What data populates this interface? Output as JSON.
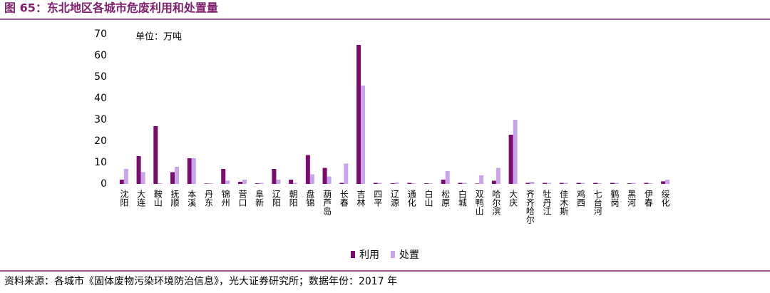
{
  "header": {
    "title": "图 65：东北地区各城市危废利用和处置量"
  },
  "chart_data": {
    "type": "bar",
    "annotation": "单位：万吨",
    "categories": [
      "沈阳",
      "大连",
      "鞍山",
      "抚顺",
      "本溪",
      "丹东",
      "锦州",
      "营口",
      "阜新",
      "辽阳",
      "朝阳",
      "盘锦",
      "葫芦岛",
      "长春",
      "吉林",
      "四平",
      "辽源",
      "通化",
      "白山",
      "松原",
      "白城",
      "双鸭山",
      "哈尔滨",
      "大庆",
      "齐齐哈尔",
      "牡丹江",
      "佳木斯",
      "鸡西",
      "七台河",
      "鹤岗",
      "黑河",
      "伊春",
      "绥化"
    ],
    "series": [
      {
        "name": "利用",
        "color": "#7b0c6e",
        "values": [
          2,
          13,
          27,
          5.5,
          12,
          0.2,
          7,
          1,
          0.3,
          7,
          2,
          13.5,
          7.5,
          0.5,
          65,
          0.5,
          0.3,
          0.5,
          0.3,
          2,
          0.5,
          0.2,
          1.5,
          23,
          0.5,
          0.5,
          0.5,
          0.5,
          0.5,
          0.5,
          0.3,
          0.5,
          1.2
        ]
      },
      {
        "name": "处置",
        "color": "#c9a3ec",
        "values": [
          7,
          5.5,
          0.3,
          8,
          12,
          0.3,
          1.5,
          2,
          0.5,
          2,
          0.5,
          4.5,
          3.5,
          9.5,
          46,
          0.5,
          0.7,
          0.3,
          0.3,
          6,
          0.5,
          4,
          7.5,
          30,
          1,
          0.5,
          0.5,
          0.5,
          0.3,
          0.5,
          0.5,
          0.3,
          2
        ]
      }
    ],
    "ylim": [
      0,
      70
    ],
    "yticks": [
      0,
      10,
      20,
      30,
      40,
      50,
      60,
      70
    ],
    "legend": "bottom"
  },
  "footer": {
    "source": "资料来源：各城市《固体废物污染环境防治信息》，光大证券研究所；数据年份：2017 年"
  }
}
